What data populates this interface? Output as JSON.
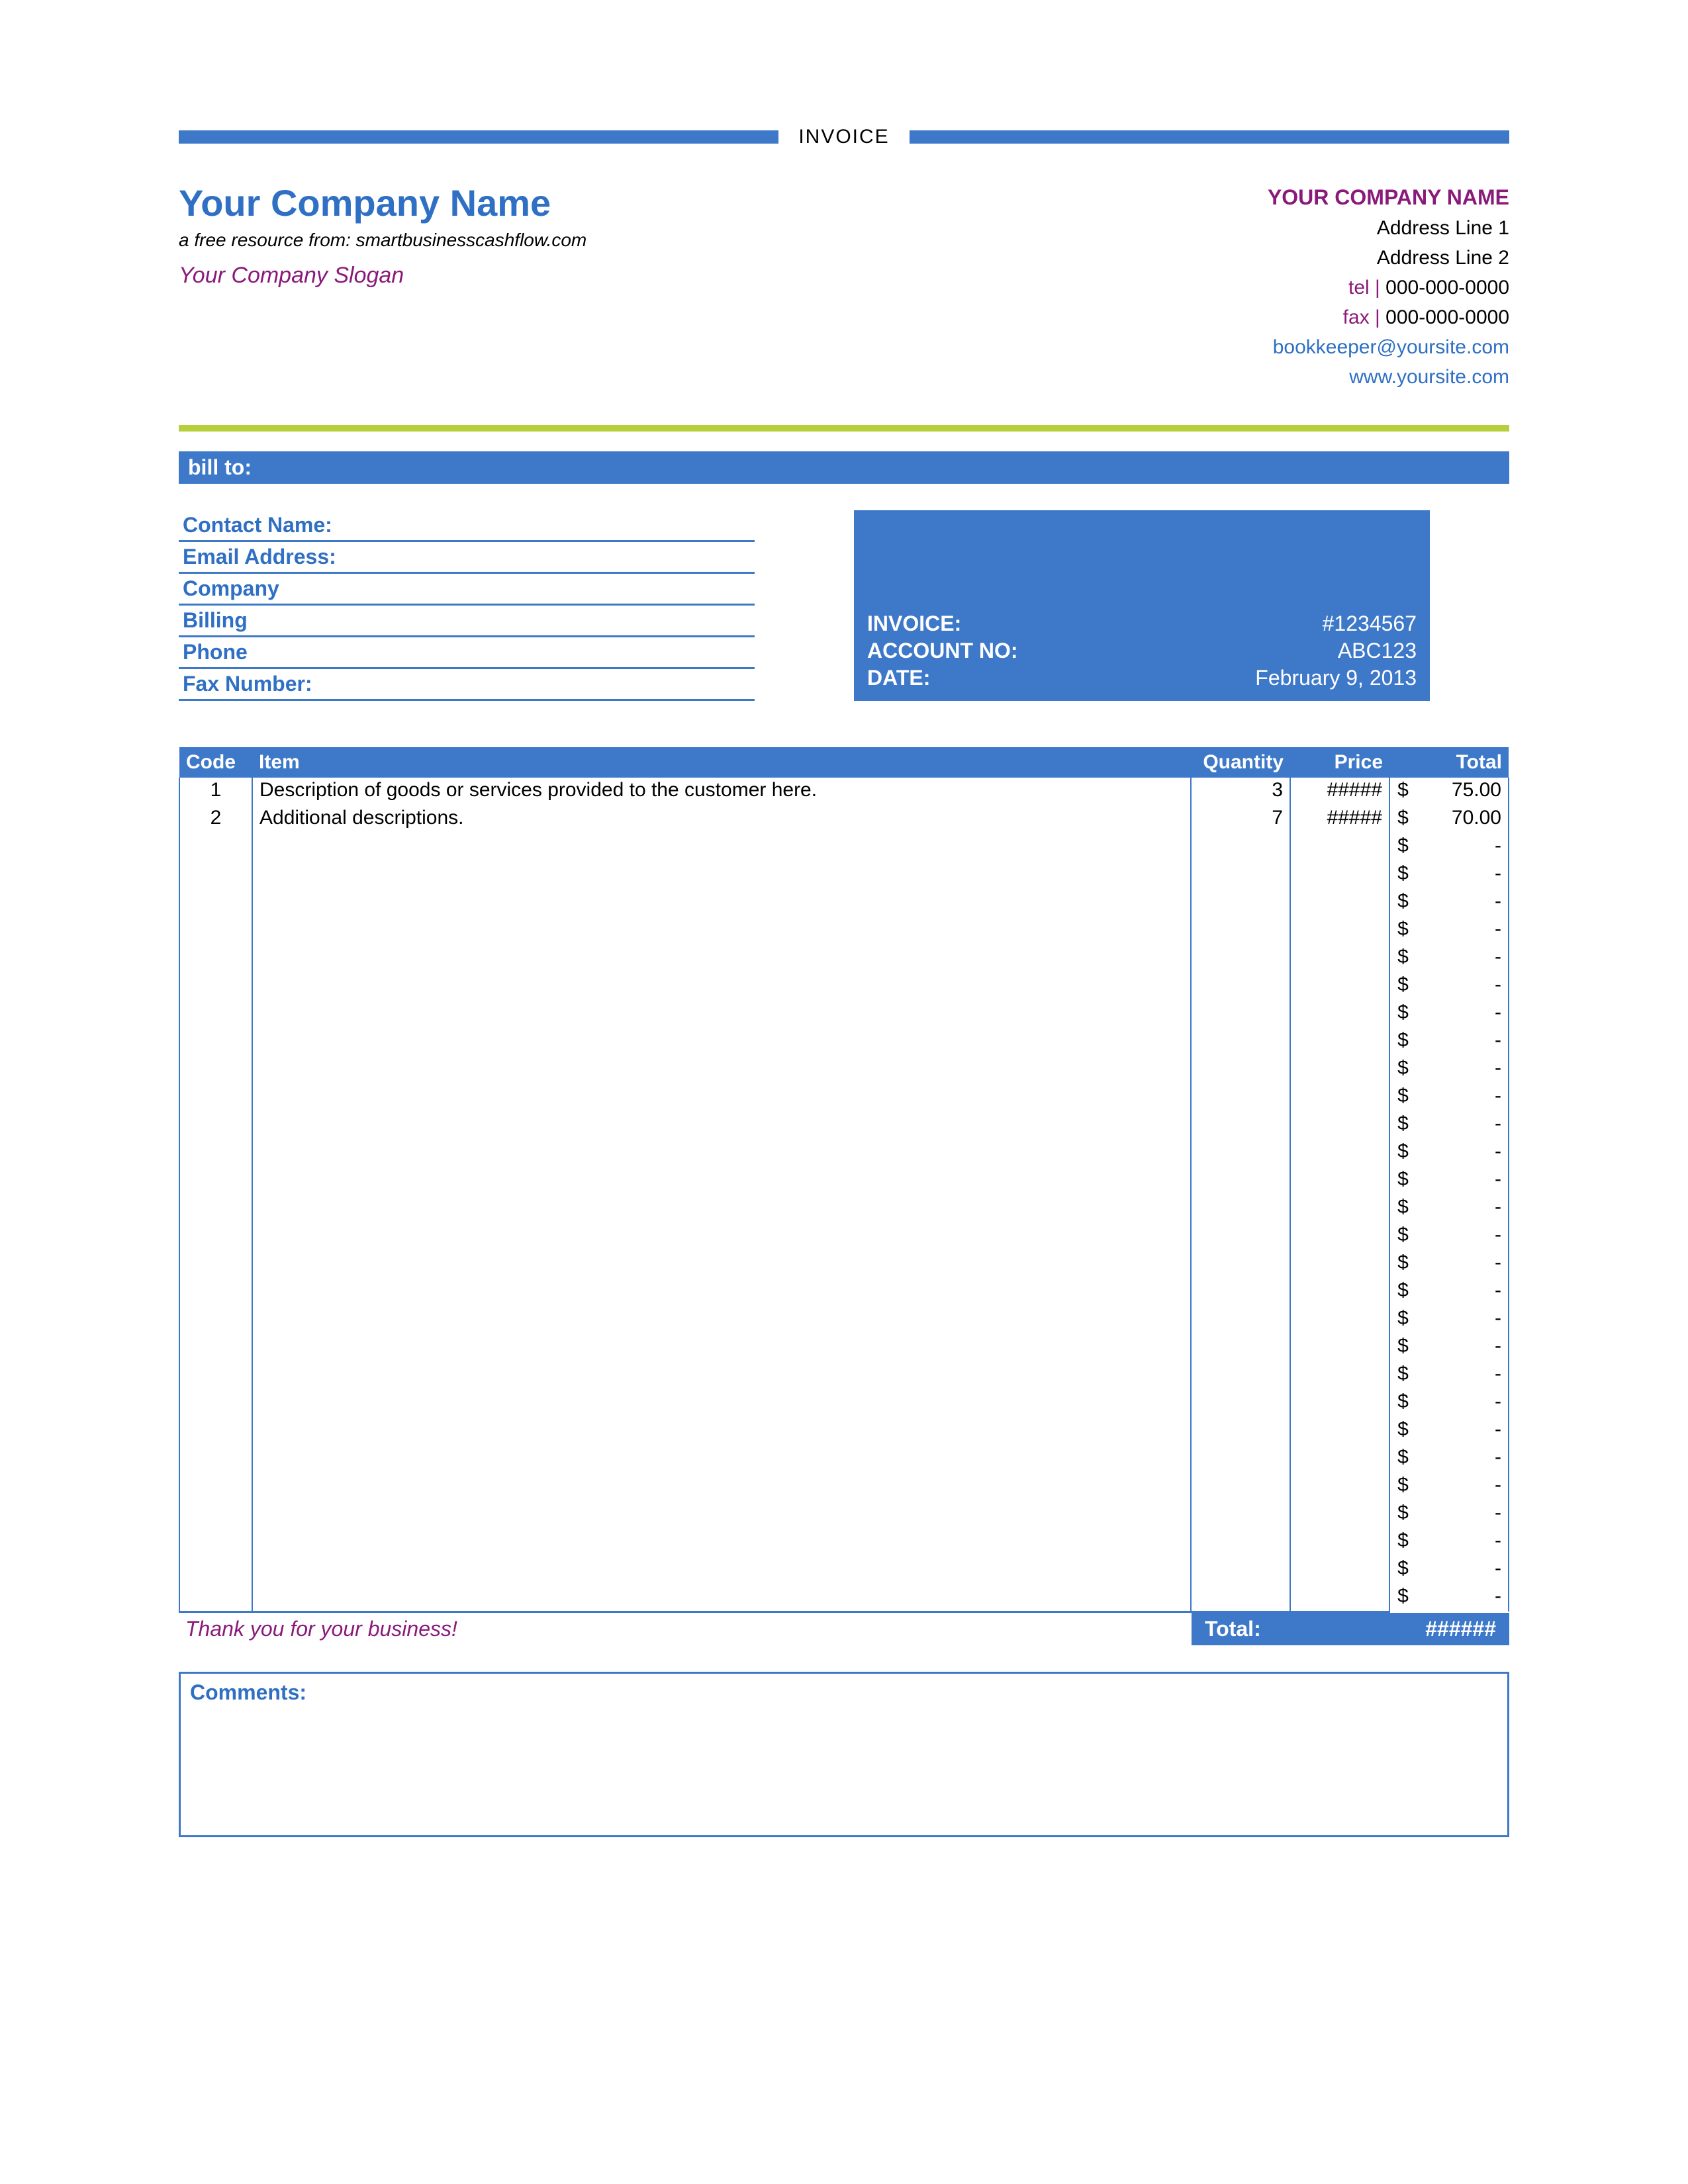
{
  "colors": {
    "blue": "#3d78c9",
    "blue_text": "#2f6fc4",
    "purple": "#8a1a7a",
    "green": "#b6cf3a",
    "black": "#000000"
  },
  "top": {
    "label": "INVOICE"
  },
  "header": {
    "company_name": "Your Company Name",
    "resource_line": "a free resource from: smartbusinesscashflow.com",
    "slogan": "Your Company Slogan"
  },
  "company_block": {
    "name": "YOUR COMPANY NAME",
    "address1": "Address Line 1",
    "address2": "Address Line 2",
    "tel_prefix": "tel |",
    "tel": "000-000-0000",
    "fax_prefix": "fax |",
    "fax": "000-000-0000",
    "email": "bookkeeper@yoursite.com",
    "website": "www.yoursite.com"
  },
  "billto": {
    "bar_label": "bill to:",
    "fields": [
      "Contact Name:",
      "Email Address:",
      "Company",
      "Billing",
      "Phone",
      "Fax Number:"
    ]
  },
  "meta": {
    "rows": [
      {
        "label": "INVOICE:",
        "value": "#1234567"
      },
      {
        "label": "ACCOUNT NO:",
        "value": "ABC123"
      },
      {
        "label": "DATE:",
        "value": "February 9, 2013"
      }
    ]
  },
  "table": {
    "headers": {
      "code": "Code",
      "item": "Item",
      "qty": "Quantity",
      "price": "Price",
      "total": "Total"
    },
    "rows": [
      {
        "code": "1",
        "item": "Description of goods or services provided to the customer here.",
        "qty": "3",
        "price": "#####",
        "total": "75.00"
      },
      {
        "code": "2",
        "item": "Additional descriptions.",
        "qty": "7",
        "price": "#####",
        "total": "70.00"
      }
    ],
    "empty_rows": 28,
    "currency_symbol": "$",
    "empty_total": "-"
  },
  "footer": {
    "thanks": "Thank you for your business!",
    "total_label": "Total:",
    "total_value": "######"
  },
  "comments": {
    "label": "Comments:"
  }
}
